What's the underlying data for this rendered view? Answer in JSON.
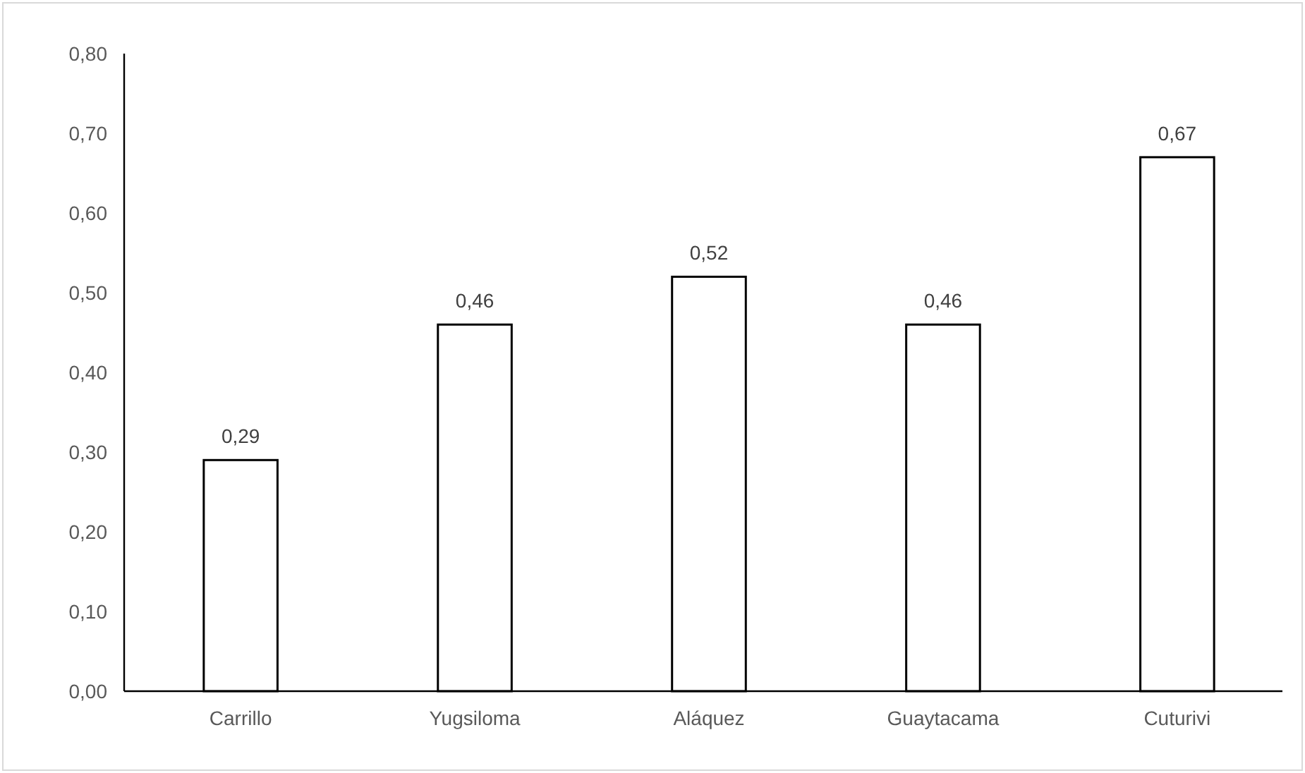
{
  "chart_data": {
    "type": "bar",
    "categories": [
      "Carrillo",
      "Yugsiloma",
      "Aláquez",
      "Guaytacama",
      "Cuturivi"
    ],
    "values": [
      0.29,
      0.46,
      0.52,
      0.46,
      0.67
    ],
    "value_labels": [
      "0,29",
      "0,46",
      "0,52",
      "0,46",
      "0,67"
    ],
    "color": "#ffffff",
    "ylim": [
      0,
      0.8
    ],
    "yticks": [
      {
        "value": 0,
        "label": "0,00"
      },
      {
        "value": 0.1,
        "label": "0,10"
      },
      {
        "value": 0.2,
        "label": "0,20"
      },
      {
        "value": 0.3,
        "label": "0,30"
      },
      {
        "value": 0.4,
        "label": "0,40"
      },
      {
        "value": 0.5,
        "label": "0,50"
      },
      {
        "value": 0.6,
        "label": "0,60"
      },
      {
        "value": 0.7,
        "label": "0,70"
      },
      {
        "value": 0.8,
        "label": "0,80"
      }
    ],
    "grid": false
  }
}
